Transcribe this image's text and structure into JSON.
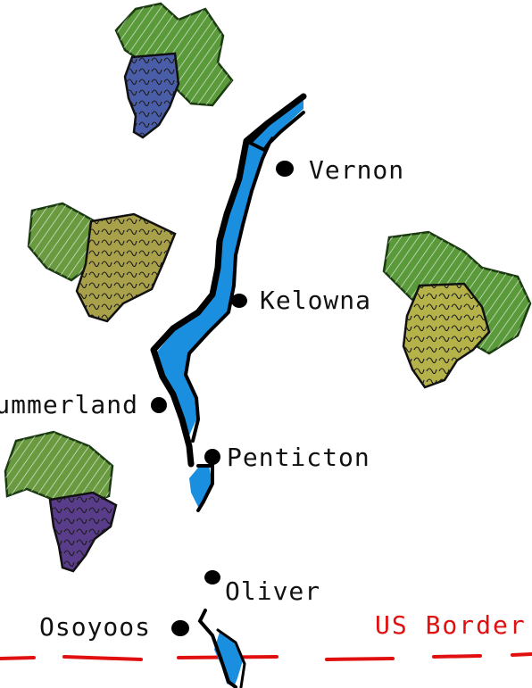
{
  "cities": {
    "vernon": "Vernon",
    "kelowna": "Kelowna",
    "summerland": "Summerland",
    "penticton": "Penticton",
    "oliver": "Oliver",
    "osoyoos": "Osoyoos"
  },
  "border": {
    "label": "US Border",
    "color": "#e01010"
  },
  "colors": {
    "lake": "#1a8fe0",
    "shore": "#000000",
    "leaf": "#5a9a3a",
    "grape_blue": "#4a5da8",
    "grape_olive": "#a9a04a",
    "grape_green": "#b5b24a",
    "grape_purple": "#5a3d8a"
  },
  "icons": [
    "grape-cluster-blue",
    "grape-cluster-olive",
    "grape-cluster-green",
    "grape-cluster-purple"
  ]
}
